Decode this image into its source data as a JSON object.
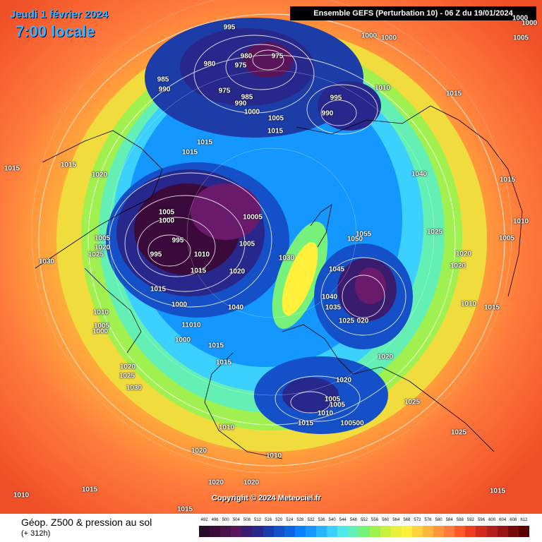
{
  "header": {
    "date_line": "Jeudi 1 février 2024",
    "time_line": "7:00 locale",
    "run_banner": "Ensemble GEFS  (Perturbation 10)  -  06 Z du 19/01/2024"
  },
  "footer": {
    "title": "Géop. Z500 & pression au sol",
    "subtitle": "(+ 312h)",
    "copyright": "Copyright © 2024 Meteociel.fr"
  },
  "legend": {
    "ticks": [
      "492",
      "496",
      "500",
      "504",
      "508",
      "512",
      "516",
      "520",
      "524",
      "528",
      "532",
      "536",
      "540",
      "544",
      "548",
      "552",
      "556",
      "560",
      "564",
      "568",
      "572",
      "576",
      "580",
      "584",
      "588",
      "592",
      "596",
      "600",
      "604",
      "608",
      "612"
    ],
    "colors": [
      "#2a0a2a",
      "#3a0a3a",
      "#4a104a",
      "#5a145a",
      "#3a1c6e",
      "#28288c",
      "#1c3ca8",
      "#1450c8",
      "#0c64e0",
      "#0a80ff",
      "#1498ff",
      "#28b4ff",
      "#3cd0ff",
      "#50e8e8",
      "#64f0b4",
      "#78f07c",
      "#a0f050",
      "#c8f03c",
      "#e8f03c",
      "#fff03c",
      "#ffd23c",
      "#ffb43c",
      "#ff963c",
      "#ff7a3c",
      "#ff5a28",
      "#f03c1e",
      "#d2281e",
      "#b41e1e",
      "#961414",
      "#780a0a",
      "#5a0000"
    ]
  },
  "pressure_labels": [
    {
      "text": "995",
      "key": "l1"
    },
    {
      "text": "980",
      "key": "l2"
    },
    {
      "text": "975",
      "key": "l3"
    },
    {
      "text": "975",
      "key": "l4"
    },
    {
      "text": "980",
      "key": "l5"
    },
    {
      "text": "975",
      "key": "l6"
    },
    {
      "text": "985",
      "key": "l7"
    },
    {
      "text": "990",
      "key": "l8"
    },
    {
      "text": "985",
      "key": "l9"
    },
    {
      "text": "990",
      "key": "l10"
    },
    {
      "text": "1000",
      "key": "l11"
    },
    {
      "text": "1000",
      "key": "l12"
    },
    {
      "text": "1000",
      "key": "l13"
    },
    {
      "text": "1000",
      "key": "l14"
    },
    {
      "text": "1005",
      "key": "l15"
    },
    {
      "text": "1010",
      "key": "l16"
    },
    {
      "text": "995",
      "key": "l17"
    },
    {
      "text": "990",
      "key": "l18"
    },
    {
      "text": "1015",
      "key": "l19"
    },
    {
      "text": "1005",
      "key": "l20"
    },
    {
      "text": "1015",
      "key": "l21"
    },
    {
      "text": "1015",
      "key": "l22"
    },
    {
      "text": "1015",
      "key": "l23"
    },
    {
      "text": "1015",
      "key": "l24"
    },
    {
      "text": "1020",
      "key": "l25"
    },
    {
      "text": "1040",
      "key": "l26"
    },
    {
      "text": "1015",
      "key": "l27"
    },
    {
      "text": "1005",
      "key": "l28"
    },
    {
      "text": "1000",
      "key": "l29"
    },
    {
      "text": "10005",
      "key": "l30"
    },
    {
      "text": "1005",
      "key": "l31"
    },
    {
      "text": "995",
      "key": "l32"
    },
    {
      "text": "995",
      "key": "l33"
    },
    {
      "text": "1010",
      "key": "l34"
    },
    {
      "text": "1020",
      "key": "l35"
    },
    {
      "text": "1025",
      "key": "l36"
    },
    {
      "text": "1030",
      "key": "l37"
    },
    {
      "text": "1015",
      "key": "l38"
    },
    {
      "text": "1020",
      "key": "l39"
    },
    {
      "text": "1030",
      "key": "l40"
    },
    {
      "text": "1055",
      "key": "l41"
    },
    {
      "text": "1050",
      "key": "l42"
    },
    {
      "text": "1025",
      "key": "l43"
    },
    {
      "text": "1045",
      "key": "l44"
    },
    {
      "text": "1020",
      "key": "l45"
    },
    {
      "text": "1020",
      "key": "l46"
    },
    {
      "text": "1010",
      "key": "l47"
    },
    {
      "text": "1040",
      "key": "l48"
    },
    {
      "text": "1035",
      "key": "l49"
    },
    {
      "text": "1025",
      "key": "l50"
    },
    {
      "text": "020",
      "key": "l51"
    },
    {
      "text": "1015",
      "key": "l52"
    },
    {
      "text": "1015",
      "key": "l53"
    },
    {
      "text": "1000",
      "key": "l54"
    },
    {
      "text": "1040",
      "key": "l55"
    },
    {
      "text": "1010",
      "key": "l56"
    },
    {
      "text": "11010",
      "key": "l57"
    },
    {
      "text": "1005",
      "key": "l58"
    },
    {
      "text": "1000",
      "key": "l59"
    },
    {
      "text": "1000",
      "key": "l60"
    },
    {
      "text": "1015",
      "key": "l61"
    },
    {
      "text": "1015",
      "key": "l62"
    },
    {
      "text": "1020",
      "key": "l63"
    },
    {
      "text": "1025",
      "key": "l64"
    },
    {
      "text": "1030",
      "key": "l65"
    },
    {
      "text": "1020",
      "key": "l66"
    },
    {
      "text": "1020",
      "key": "l67"
    },
    {
      "text": "1005",
      "key": "l68"
    },
    {
      "text": "1005",
      "key": "l69"
    },
    {
      "text": "1010",
      "key": "l70"
    },
    {
      "text": "1015",
      "key": "l71"
    },
    {
      "text": "100500",
      "key": "l72"
    },
    {
      "text": "1025",
      "key": "l73"
    },
    {
      "text": "1025",
      "key": "l74"
    },
    {
      "text": "1010",
      "key": "l75"
    },
    {
      "text": "1020",
      "key": "l76"
    },
    {
      "text": "1010",
      "key": "l77"
    },
    {
      "text": "1020",
      "key": "l78"
    },
    {
      "text": "1020",
      "key": "l79"
    },
    {
      "text": "1015",
      "key": "l80"
    },
    {
      "text": "1010",
      "key": "l81"
    },
    {
      "text": "1015",
      "key": "l82"
    },
    {
      "text": "1000",
      "key": "l83"
    },
    {
      "text": "1005",
      "key": "l84"
    },
    {
      "text": "1010",
      "key": "l85"
    },
    {
      "text": "1005",
      "key": "l86"
    },
    {
      "text": "1015",
      "key": "l87"
    },
    {
      "text": "1015",
      "key": "l88"
    }
  ]
}
